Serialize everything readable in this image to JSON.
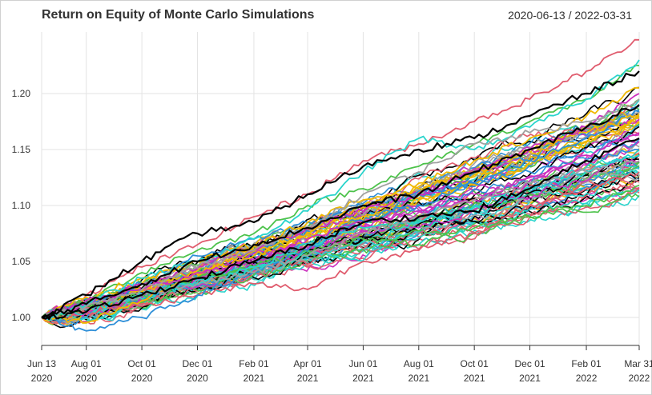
{
  "header": {
    "title": "Return on Equity of Monte Carlo Simulations",
    "date_range": "2020-06-13 / 2022-03-31"
  },
  "chart_data": {
    "type": "line",
    "title": "Return on Equity of Monte Carlo Simulations",
    "date_range_label": "2020-06-13 / 2022-03-31",
    "x_start": "2020-06-13",
    "x_end": "2022-03-31",
    "ylim": [
      0.975,
      1.255
    ],
    "grid": true,
    "legend": "none",
    "y_ticks": [
      {
        "value": 1.0,
        "label": "1.00"
      },
      {
        "value": 1.05,
        "label": "1.05"
      },
      {
        "value": 1.1,
        "label": "1.10"
      },
      {
        "value": 1.15,
        "label": "1.15"
      },
      {
        "value": 1.2,
        "label": "1.20"
      }
    ],
    "x_ticks": [
      {
        "date": "2020-06-13",
        "line1": "Jun 13",
        "line2": "2020"
      },
      {
        "date": "2020-08-01",
        "line1": "Aug 01",
        "line2": "2020"
      },
      {
        "date": "2020-10-01",
        "line1": "Oct 01",
        "line2": "2020"
      },
      {
        "date": "2020-12-01",
        "line1": "Dec 01",
        "line2": "2020"
      },
      {
        "date": "2021-02-01",
        "line1": "Feb 01",
        "line2": "2021"
      },
      {
        "date": "2021-04-01",
        "line1": "Apr 01",
        "line2": "2021"
      },
      {
        "date": "2021-06-01",
        "line1": "Jun 01",
        "line2": "2021"
      },
      {
        "date": "2021-08-01",
        "line1": "Aug 01",
        "line2": "2021"
      },
      {
        "date": "2021-10-01",
        "line1": "Oct 01",
        "line2": "2021"
      },
      {
        "date": "2021-12-01",
        "line1": "Dec 01",
        "line2": "2021"
      },
      {
        "date": "2022-02-01",
        "line1": "Feb 01",
        "line2": "2022"
      },
      {
        "date": "2022-03-31",
        "line1": "Mar 31",
        "line2": "2022"
      }
    ],
    "palette": [
      "#e05c6e",
      "#4cc24a",
      "#2e8fd8",
      "#f0b800",
      "#cc2fbf",
      "#29d4cc",
      "#a0a0a0",
      "#000000"
    ],
    "series": [
      {
        "color": "#e05c6e",
        "points": [
          [
            "2020-06-13",
            1.0
          ],
          [
            "2020-08-01",
            1.02
          ],
          [
            "2020-10-01",
            1.045
          ],
          [
            "2020-12-01",
            1.065
          ],
          [
            "2021-02-01",
            1.09
          ],
          [
            "2021-04-01",
            1.11
          ],
          [
            "2021-06-01",
            1.14
          ],
          [
            "2021-08-01",
            1.155
          ],
          [
            "2021-10-01",
            1.175
          ],
          [
            "2021-12-01",
            1.195
          ],
          [
            "2022-02-01",
            1.22
          ],
          [
            "2022-03-31",
            1.248
          ]
        ]
      },
      {
        "color": "#e05c6e",
        "points": [
          [
            "2020-06-13",
            1.0
          ],
          [
            "2020-08-01",
            1.005
          ],
          [
            "2020-10-01",
            1.01
          ],
          [
            "2020-12-01",
            1.02
          ],
          [
            "2021-02-01",
            1.03
          ],
          [
            "2021-04-01",
            1.025
          ],
          [
            "2021-06-01",
            1.05
          ],
          [
            "2021-08-01",
            1.06
          ],
          [
            "2021-10-01",
            1.075
          ],
          [
            "2021-12-01",
            1.1
          ],
          [
            "2022-02-01",
            1.115
          ],
          [
            "2022-03-31",
            1.13
          ]
        ]
      },
      {
        "color": "#4cc24a",
        "points": [
          [
            "2020-06-13",
            1.0
          ],
          [
            "2020-08-01",
            1.01
          ],
          [
            "2020-10-01",
            1.02
          ],
          [
            "2020-12-01",
            1.035
          ],
          [
            "2021-02-01",
            1.045
          ],
          [
            "2021-04-01",
            1.06
          ],
          [
            "2021-06-01",
            1.07
          ],
          [
            "2021-08-01",
            1.065
          ],
          [
            "2021-10-01",
            1.08
          ],
          [
            "2021-12-01",
            1.09
          ],
          [
            "2022-02-01",
            1.1
          ],
          [
            "2022-03-31",
            1.118
          ]
        ]
      },
      {
        "color": "#4cc24a",
        "points": [
          [
            "2020-06-13",
            1.0
          ],
          [
            "2020-08-01",
            1.015
          ],
          [
            "2020-10-01",
            1.04
          ],
          [
            "2020-12-01",
            1.06
          ],
          [
            "2021-02-01",
            1.075
          ],
          [
            "2021-04-01",
            1.1
          ],
          [
            "2021-06-01",
            1.115
          ],
          [
            "2021-08-01",
            1.135
          ],
          [
            "2021-10-01",
            1.155
          ],
          [
            "2021-12-01",
            1.175
          ],
          [
            "2022-02-01",
            1.195
          ],
          [
            "2022-03-31",
            1.225
          ]
        ]
      },
      {
        "color": "#2e8fd8",
        "points": [
          [
            "2020-06-13",
            1.0
          ],
          [
            "2020-08-01",
            0.988
          ],
          [
            "2020-10-01",
            1.0
          ],
          [
            "2020-12-01",
            1.02
          ],
          [
            "2021-02-01",
            1.04
          ],
          [
            "2021-04-01",
            1.06
          ],
          [
            "2021-06-01",
            1.085
          ],
          [
            "2021-08-01",
            1.1
          ],
          [
            "2021-10-01",
            1.12
          ],
          [
            "2021-12-01",
            1.14
          ],
          [
            "2022-02-01",
            1.16
          ],
          [
            "2022-03-31",
            1.185
          ]
        ]
      },
      {
        "color": "#2e8fd8",
        "points": [
          [
            "2020-06-13",
            1.0
          ],
          [
            "2020-08-01",
            1.012
          ],
          [
            "2020-10-01",
            1.03
          ],
          [
            "2020-12-01",
            1.055
          ],
          [
            "2021-02-01",
            1.07
          ],
          [
            "2021-04-01",
            1.085
          ],
          [
            "2021-06-01",
            1.1
          ],
          [
            "2021-08-01",
            1.11
          ],
          [
            "2021-10-01",
            1.12
          ],
          [
            "2021-12-01",
            1.13
          ],
          [
            "2022-02-01",
            1.14
          ],
          [
            "2022-03-31",
            1.15
          ]
        ]
      },
      {
        "color": "#f0b800",
        "points": [
          [
            "2020-06-13",
            1.0
          ],
          [
            "2020-08-01",
            0.995
          ],
          [
            "2020-10-01",
            1.015
          ],
          [
            "2020-12-01",
            1.04
          ],
          [
            "2021-02-01",
            1.055
          ],
          [
            "2021-04-01",
            1.075
          ],
          [
            "2021-06-01",
            1.1
          ],
          [
            "2021-08-01",
            1.12
          ],
          [
            "2021-10-01",
            1.14
          ],
          [
            "2021-12-01",
            1.16
          ],
          [
            "2022-02-01",
            1.18
          ],
          [
            "2022-03-31",
            1.205
          ]
        ]
      },
      {
        "color": "#f0b800",
        "points": [
          [
            "2020-06-13",
            1.0
          ],
          [
            "2020-08-01",
            1.018
          ],
          [
            "2020-10-01",
            1.035
          ],
          [
            "2020-12-01",
            1.05
          ],
          [
            "2021-02-01",
            1.065
          ],
          [
            "2021-04-01",
            1.085
          ],
          [
            "2021-06-01",
            1.105
          ],
          [
            "2021-08-01",
            1.115
          ],
          [
            "2021-10-01",
            1.13
          ],
          [
            "2021-12-01",
            1.15
          ],
          [
            "2022-02-01",
            1.165
          ],
          [
            "2022-03-31",
            1.18
          ]
        ]
      },
      {
        "color": "#cc2fbf",
        "points": [
          [
            "2020-06-13",
            1.0
          ],
          [
            "2020-08-01",
            1.01
          ],
          [
            "2020-10-01",
            1.03
          ],
          [
            "2020-12-01",
            1.045
          ],
          [
            "2021-02-01",
            1.06
          ],
          [
            "2021-04-01",
            1.08
          ],
          [
            "2021-06-01",
            1.095
          ],
          [
            "2021-08-01",
            1.11
          ],
          [
            "2021-10-01",
            1.13
          ],
          [
            "2021-12-01",
            1.15
          ],
          [
            "2022-02-01",
            1.17
          ],
          [
            "2022-03-31",
            1.2
          ]
        ]
      },
      {
        "color": "#cc2fbf",
        "points": [
          [
            "2020-06-13",
            1.0
          ],
          [
            "2020-08-01",
            1.015
          ],
          [
            "2020-10-01",
            1.025
          ],
          [
            "2020-12-01",
            1.04
          ],
          [
            "2021-02-01",
            1.05
          ],
          [
            "2021-04-01",
            1.07
          ],
          [
            "2021-06-01",
            1.085
          ],
          [
            "2021-08-01",
            1.095
          ],
          [
            "2021-10-01",
            1.105
          ],
          [
            "2021-12-01",
            1.125
          ],
          [
            "2022-02-01",
            1.145
          ],
          [
            "2022-03-31",
            1.165
          ]
        ]
      },
      {
        "color": "#29d4cc",
        "points": [
          [
            "2020-06-13",
            1.0
          ],
          [
            "2020-08-01",
            1.012
          ],
          [
            "2020-10-01",
            1.035
          ],
          [
            "2020-12-01",
            1.05
          ],
          [
            "2021-02-01",
            1.07
          ],
          [
            "2021-04-01",
            1.095
          ],
          [
            "2021-06-01",
            1.13
          ],
          [
            "2021-08-01",
            1.16
          ],
          [
            "2021-10-01",
            1.15
          ],
          [
            "2021-12-01",
            1.17
          ],
          [
            "2022-02-01",
            1.195
          ],
          [
            "2022-03-31",
            1.23
          ]
        ]
      },
      {
        "color": "#29d4cc",
        "points": [
          [
            "2020-06-13",
            1.0
          ],
          [
            "2020-08-01",
            1.005
          ],
          [
            "2020-10-01",
            1.02
          ],
          [
            "2020-12-01",
            1.03
          ],
          [
            "2021-02-01",
            1.045
          ],
          [
            "2021-04-01",
            1.065
          ],
          [
            "2021-06-01",
            1.08
          ],
          [
            "2021-08-01",
            1.085
          ],
          [
            "2021-10-01",
            1.1
          ],
          [
            "2021-12-01",
            1.115
          ],
          [
            "2022-02-01",
            1.13
          ],
          [
            "2022-03-31",
            1.145
          ]
        ]
      },
      {
        "color": "#a0a0a0",
        "points": [
          [
            "2020-06-13",
            1.0
          ],
          [
            "2020-08-01",
            1.008
          ],
          [
            "2020-10-01",
            1.025
          ],
          [
            "2020-12-01",
            1.045
          ],
          [
            "2021-02-01",
            1.06
          ],
          [
            "2021-04-01",
            1.08
          ],
          [
            "2021-06-01",
            1.11
          ],
          [
            "2021-08-01",
            1.13
          ],
          [
            "2021-10-01",
            1.155
          ],
          [
            "2021-12-01",
            1.165
          ],
          [
            "2022-02-01",
            1.175
          ],
          [
            "2022-03-31",
            1.195
          ]
        ]
      },
      {
        "color": "#a0a0a0",
        "points": [
          [
            "2020-06-13",
            1.0
          ],
          [
            "2020-08-01",
            1.01
          ],
          [
            "2020-10-01",
            1.02
          ],
          [
            "2020-12-01",
            1.03
          ],
          [
            "2021-02-01",
            1.04
          ],
          [
            "2021-04-01",
            1.055
          ],
          [
            "2021-06-01",
            1.075
          ],
          [
            "2021-08-01",
            1.09
          ],
          [
            "2021-10-01",
            1.105
          ],
          [
            "2021-12-01",
            1.12
          ],
          [
            "2022-02-01",
            1.13
          ],
          [
            "2022-03-31",
            1.14
          ]
        ]
      },
      {
        "color": "#000000",
        "points": [
          [
            "2020-06-13",
            1.0
          ],
          [
            "2020-08-01",
            1.02
          ],
          [
            "2020-10-01",
            1.05
          ],
          [
            "2020-12-01",
            1.075
          ],
          [
            "2021-02-01",
            1.085
          ],
          [
            "2021-04-01",
            1.11
          ],
          [
            "2021-06-01",
            1.135
          ],
          [
            "2021-08-01",
            1.15
          ],
          [
            "2021-10-01",
            1.16
          ],
          [
            "2021-12-01",
            1.18
          ],
          [
            "2022-02-01",
            1.2
          ],
          [
            "2022-03-31",
            1.22
          ]
        ]
      },
      {
        "color": "#000000",
        "points": [
          [
            "2020-06-13",
            1.0
          ],
          [
            "2020-08-01",
            1.005
          ],
          [
            "2020-10-01",
            1.02
          ],
          [
            "2020-12-01",
            1.035
          ],
          [
            "2021-02-01",
            1.05
          ],
          [
            "2021-04-01",
            1.065
          ],
          [
            "2021-06-01",
            1.085
          ],
          [
            "2021-08-01",
            1.09
          ],
          [
            "2021-10-01",
            1.095
          ],
          [
            "2021-12-01",
            1.115
          ],
          [
            "2022-02-01",
            1.14
          ],
          [
            "2022-03-31",
            1.16
          ]
        ]
      },
      {
        "color": "#000000",
        "points": [
          [
            "2020-06-13",
            1.0
          ],
          [
            "2020-08-01",
            1.012
          ],
          [
            "2020-10-01",
            1.03
          ],
          [
            "2020-12-01",
            1.05
          ],
          [
            "2021-02-01",
            1.065
          ],
          [
            "2021-04-01",
            1.08
          ],
          [
            "2021-06-01",
            1.1
          ],
          [
            "2021-08-01",
            1.11
          ],
          [
            "2021-10-01",
            1.13
          ],
          [
            "2021-12-01",
            1.15
          ],
          [
            "2022-02-01",
            1.17
          ],
          [
            "2022-03-31",
            1.19
          ]
        ]
      }
    ],
    "band_lines": 70
  }
}
